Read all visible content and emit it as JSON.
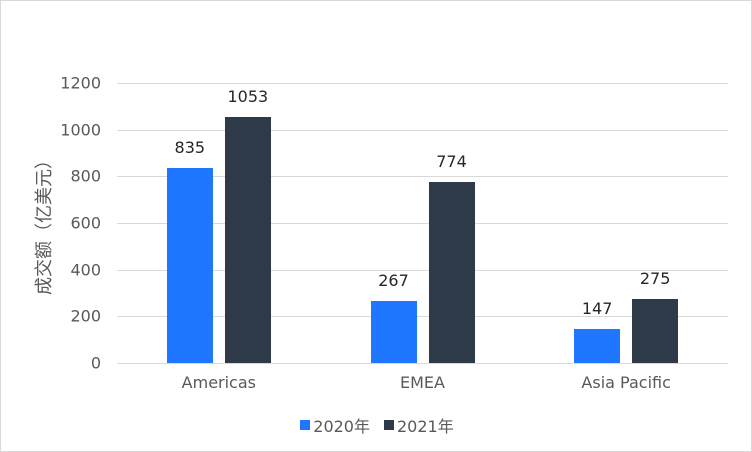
{
  "chart_data": {
    "type": "bar",
    "title": "",
    "xlabel": "",
    "ylabel": "成交额（亿美元）",
    "ylim": [
      0,
      1200
    ],
    "yticks": [
      0,
      200,
      400,
      600,
      800,
      1000,
      1200
    ],
    "grid": true,
    "legend_position": "bottom",
    "categories": [
      "Americas",
      "EMEA",
      "Asia Pacific"
    ],
    "series": [
      {
        "name": "2020年",
        "values": [
          835,
          267,
          147
        ],
        "color": "#1f77ff"
      },
      {
        "name": "2021年",
        "values": [
          1053,
          774,
          275
        ],
        "color": "#2e3a48"
      }
    ],
    "data_labels": true
  }
}
